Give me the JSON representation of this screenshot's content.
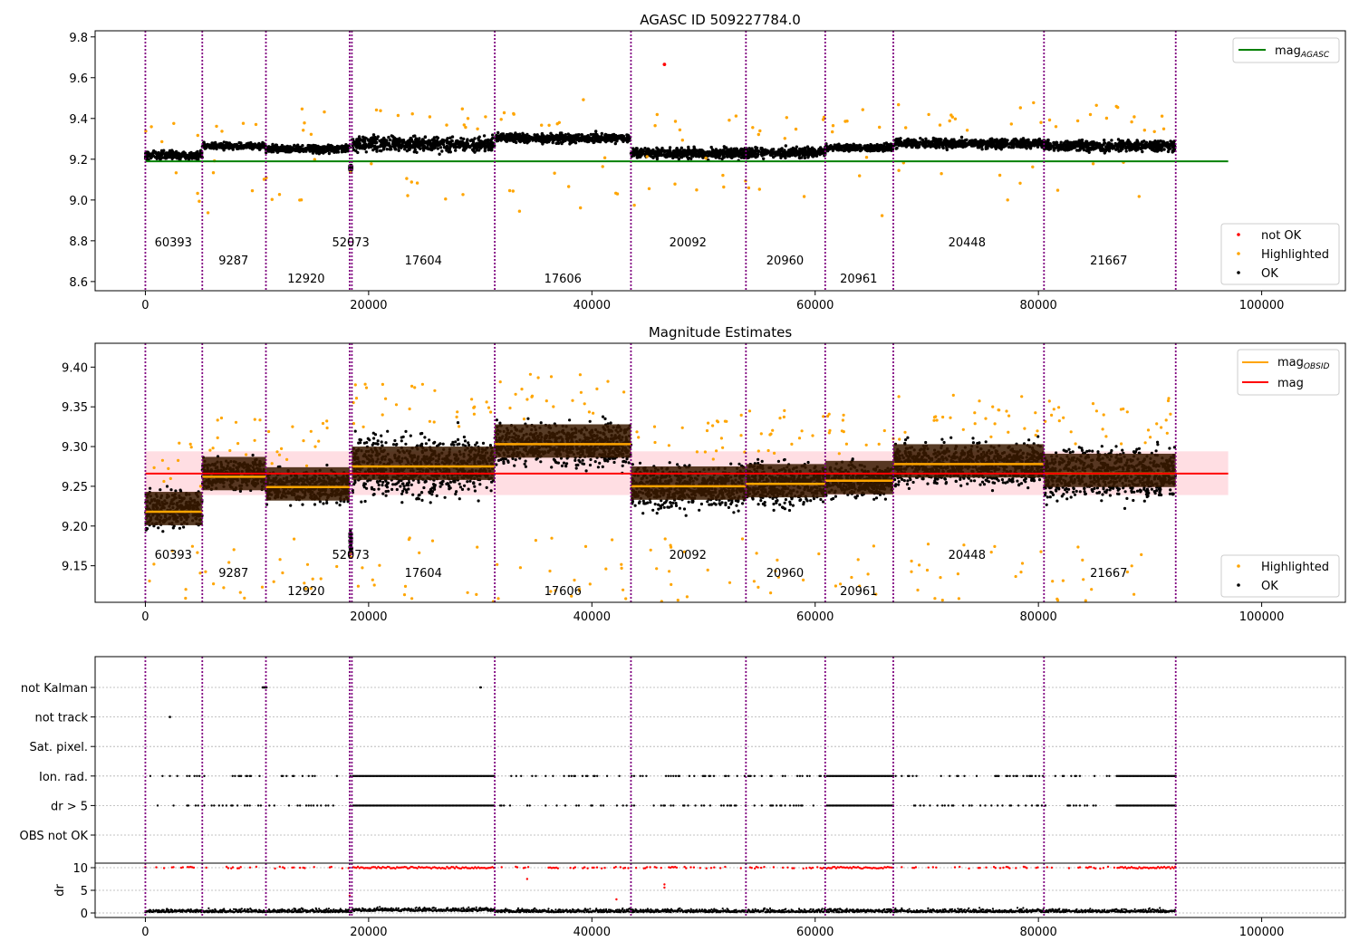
{
  "chart_data": [
    {
      "type": "scatter",
      "title": "AGASC ID 509227784.0",
      "xlim": [
        -4500,
        107500
      ],
      "ylim": [
        8.555,
        9.83
      ],
      "x_ticks": [
        0,
        20000,
        40000,
        60000,
        80000,
        100000
      ],
      "y_ticks": [
        "8.6",
        "8.8",
        "9.0",
        "9.2",
        "9.4",
        "9.6",
        "9.8"
      ],
      "mag_agasc": 9.19,
      "not_ok_points": [
        [
          46500,
          9.665
        ]
      ],
      "legend_upper": "top-right",
      "legend_upper_entries": [
        {
          "label": "mag",
          "sub": "AGASC",
          "color": "#008000"
        }
      ],
      "legend_lower": "bottom-right",
      "legend_lower_entries": [
        {
          "label": "not OK",
          "color": "#ff0000"
        },
        {
          "label": "Highlighted",
          "color": "#ffa500"
        },
        {
          "label": "OK",
          "color": "#000000"
        }
      ],
      "grid": false
    },
    {
      "type": "scatter",
      "title": "Magnitude Estimates",
      "xlim": [
        -4500,
        107500
      ],
      "ylim": [
        9.104,
        9.43
      ],
      "x_ticks": [
        0,
        20000,
        40000,
        60000,
        80000,
        100000
      ],
      "y_ticks": [
        "9.15",
        "9.20",
        "9.25",
        "9.30",
        "9.35",
        "9.40"
      ],
      "mag_mean": 9.266,
      "mag_band": [
        9.239,
        9.294
      ],
      "obsid_mags": [
        {
          "x0": 0,
          "x1": 5100,
          "mag": 9.218
        },
        {
          "x0": 5100,
          "x1": 10800,
          "mag": 9.262
        },
        {
          "x0": 10800,
          "x1": 18300,
          "mag": 9.249
        },
        {
          "x0": 18500,
          "x1": 31300,
          "mag": 9.275
        },
        {
          "x0": 31300,
          "x1": 43500,
          "mag": 9.303
        },
        {
          "x0": 43500,
          "x1": 53800,
          "mag": 9.25
        },
        {
          "x0": 53800,
          "x1": 60900,
          "mag": 9.253
        },
        {
          "x0": 60900,
          "x1": 67000,
          "mag": 9.257
        },
        {
          "x0": 67000,
          "x1": 80500,
          "mag": 9.278
        },
        {
          "x0": 80500,
          "x1": 92300,
          "mag": 9.266
        }
      ],
      "legend_upper": "top-right",
      "legend_upper_entries": [
        {
          "label": "mag",
          "sub": "OBSID",
          "color": "#ffa500"
        },
        {
          "label": "mag",
          "sub": "",
          "color": "#ff0000"
        }
      ],
      "legend_lower": "bottom-right",
      "legend_lower_entries": [
        {
          "label": "Highlighted",
          "color": "#ffa500"
        },
        {
          "label": "OK",
          "color": "#000000"
        }
      ],
      "grid": false
    },
    {
      "type": "scatter",
      "title": "",
      "xlim": [
        -4500,
        107500
      ],
      "y_categories": [
        "not Kalman",
        "not track",
        "Sat. pixel.",
        "Ion. rad.",
        "dr > 5",
        "OBS not OK"
      ],
      "flag_density": {
        "not Kalman": [
          [
            10500,
            10900
          ],
          [
            30000,
            30100
          ]
        ],
        "not track": [
          [
            2200,
            2300
          ]
        ],
        "Sat. pixel.": [],
        "Ion. rad.": "sparse in all obsids, dense 18500-31300 and 61000-67000 and 87000-92300",
        "dr > 5": "same as Ion. rad.",
        "OBS not OK": []
      },
      "dr_ylim": [
        -1,
        11
      ],
      "dr_ticks": [
        "0",
        "5",
        "10"
      ],
      "dr_label": "dr",
      "grid": true
    }
  ],
  "obsid_boundaries": [
    0,
    5100,
    10800,
    18300,
    18500,
    31300,
    43500,
    53800,
    60900,
    67000,
    80500,
    92300
  ],
  "obsid_labels": [
    {
      "text": "60393",
      "x": 2500,
      "row": 2
    },
    {
      "text": "9287",
      "x": 7900,
      "row": 1
    },
    {
      "text": "12920",
      "x": 14400,
      "row": 0
    },
    {
      "text": "52073",
      "x": 18400,
      "row": 2
    },
    {
      "text": "17604",
      "x": 24900,
      "row": 1
    },
    {
      "text": "17606",
      "x": 37400,
      "row": 0
    },
    {
      "text": "20092",
      "x": 48600,
      "row": 2
    },
    {
      "text": "20960",
      "x": 57300,
      "row": 1
    },
    {
      "text": "20961",
      "x": 63900,
      "row": 0
    },
    {
      "text": "20448",
      "x": 73600,
      "row": 2
    },
    {
      "text": "21667",
      "x": 86300,
      "row": 1
    }
  ],
  "obsid_segments": [
    {
      "x0": 0,
      "x1": 5100,
      "mag": 9.22,
      "spread": 0.018
    },
    {
      "x0": 5100,
      "x1": 10800,
      "mag": 9.265,
      "spread": 0.014
    },
    {
      "x0": 10800,
      "x1": 18300,
      "mag": 9.25,
      "spread": 0.016
    },
    {
      "x0": 18300,
      "x1": 18500,
      "mag": 9.18,
      "spread": 0.012
    },
    {
      "x0": 18500,
      "x1": 31300,
      "mag": 9.275,
      "spread": 0.03
    },
    {
      "x0": 31300,
      "x1": 43500,
      "mag": 9.303,
      "spread": 0.02
    },
    {
      "x0": 43500,
      "x1": 53800,
      "mag": 9.25,
      "spread": 0.022
    },
    {
      "x0": 53800,
      "x1": 60900,
      "mag": 9.253,
      "spread": 0.022
    },
    {
      "x0": 60900,
      "x1": 67000,
      "mag": 9.257,
      "spread": 0.016
    },
    {
      "x0": 67000,
      "x1": 80500,
      "mag": 9.278,
      "spread": 0.02
    },
    {
      "x0": 80500,
      "x1": 92300,
      "mag": 9.266,
      "spread": 0.024
    }
  ],
  "colors": {
    "ok": "#000000",
    "highlighted": "#ffa500",
    "not_ok": "#ff0000",
    "agasc_line": "#008000",
    "mean_line": "#ff0000",
    "band": "#ffb6c1",
    "obsid_boundary": "#800080",
    "obsid_box": "#3a1a00"
  }
}
